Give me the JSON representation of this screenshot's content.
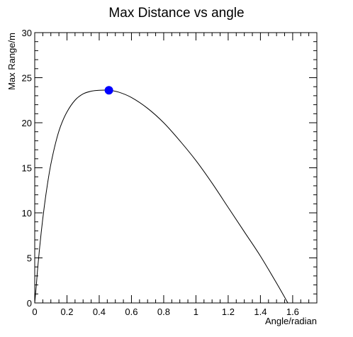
{
  "chart_data": {
    "type": "line",
    "title": "Max Distance vs angle",
    "xlabel": "Angle/radian",
    "ylabel": "Max Range/m",
    "xlim": [
      0,
      1.75
    ],
    "ylim": [
      0,
      30
    ],
    "xticks": [
      "0",
      "0.2",
      "0.4",
      "0.6",
      "0.8",
      "1",
      "1.2",
      "1.4",
      "1.6"
    ],
    "yticks": [
      "0",
      "5",
      "10",
      "15",
      "20",
      "25",
      "30"
    ],
    "grid": false,
    "series": [
      {
        "color": "#000000",
        "x": [
          0,
          0.01,
          0.02,
          0.04,
          0.06,
          0.08,
          0.1,
          0.13,
          0.16,
          0.2,
          0.25,
          0.3,
          0.35,
          0.4,
          0.46,
          0.52,
          0.6,
          0.7,
          0.8,
          0.9,
          1.0,
          1.1,
          1.2,
          1.3,
          1.4,
          1.5,
          1.57
        ],
        "y": [
          0,
          2.0,
          4.2,
          7.8,
          10.8,
          13.3,
          15.4,
          17.8,
          19.6,
          21.2,
          22.5,
          23.2,
          23.5,
          23.6,
          23.6,
          23.4,
          22.8,
          21.6,
          20.0,
          18.0,
          15.8,
          13.3,
          10.6,
          7.9,
          5.2,
          2.2,
          0
        ]
      }
    ],
    "marker": {
      "x": 0.46,
      "y": 23.6,
      "color": "#0000ff"
    }
  }
}
